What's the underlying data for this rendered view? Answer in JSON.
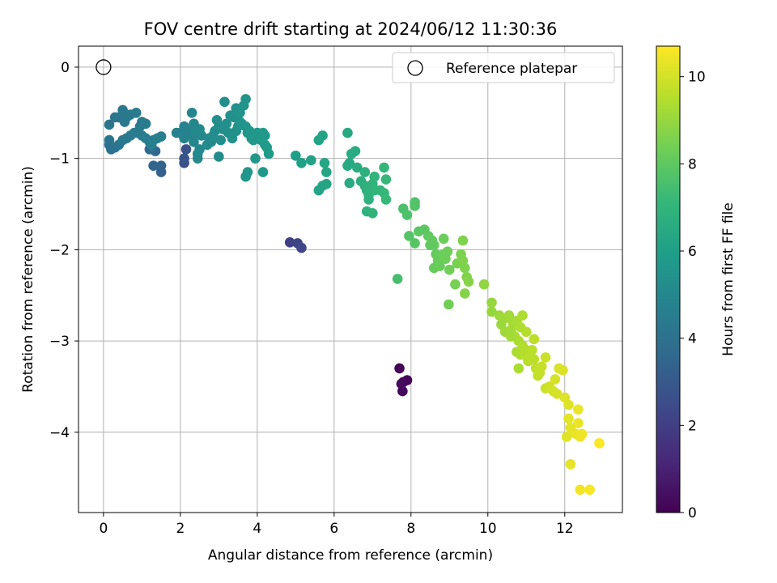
{
  "chart_data": {
    "type": "scatter",
    "title": "FOV centre drift starting at 2024/06/12 11:30:36",
    "xlabel": "Angular distance from reference (arcmin)",
    "ylabel": "Rotation from reference (arcmin)",
    "xlim": [
      -0.65,
      13.5
    ],
    "ylim": [
      -4.88,
      0.23
    ],
    "xticks": [
      0,
      2,
      4,
      6,
      8,
      10,
      12
    ],
    "yticks": [
      0,
      -1,
      -2,
      -3,
      -4
    ],
    "grid": true,
    "legend": {
      "placement": "top-right",
      "entries": [
        "Reference platepar"
      ]
    },
    "reference_point": {
      "x": 0,
      "y": 0
    },
    "colorbar": {
      "label": "Hours from first FF file",
      "range": [
        0,
        10.7
      ],
      "ticks": [
        0,
        2,
        4,
        6,
        8,
        10
      ],
      "colormap": [
        "#440154",
        "#482878",
        "#3e4989",
        "#31688e",
        "#26828e",
        "#1f9e89",
        "#35b779",
        "#6ece58",
        "#b5de2b",
        "#fde725"
      ]
    },
    "points": [
      [
        7.7,
        -3.3,
        0.1
      ],
      [
        7.8,
        -3.45,
        0.15
      ],
      [
        7.9,
        -3.43,
        0.2
      ],
      [
        7.78,
        -3.55,
        0.25
      ],
      [
        7.75,
        -3.47,
        0.3
      ],
      [
        4.85,
        -1.92,
        2.1
      ],
      [
        5.05,
        -1.93,
        2.2
      ],
      [
        5.15,
        -1.98,
        2.3
      ],
      [
        2.1,
        -1.05,
        2.6
      ],
      [
        2.15,
        -0.9,
        2.7
      ],
      [
        2.1,
        -1.0,
        2.8
      ],
      [
        1.5,
        -1.15,
        3.3
      ],
      [
        1.5,
        -1.08,
        3.4
      ],
      [
        1.3,
        -1.08,
        3.5
      ],
      [
        1.35,
        -0.92,
        3.6
      ],
      [
        1.2,
        -0.9,
        3.7
      ],
      [
        0.15,
        -0.85,
        3.9
      ],
      [
        0.2,
        -0.9,
        4.0
      ],
      [
        0.3,
        -0.88,
        4.05
      ],
      [
        0.15,
        -0.8,
        4.1
      ],
      [
        0.4,
        -0.85,
        4.2
      ],
      [
        0.5,
        -0.8,
        4.3
      ],
      [
        0.6,
        -0.78,
        4.35
      ],
      [
        0.7,
        -0.75,
        4.4
      ],
      [
        0.8,
        -0.72,
        4.45
      ],
      [
        0.9,
        -0.72,
        4.5
      ],
      [
        1.0,
        -0.75,
        4.5
      ],
      [
        1.1,
        -0.78,
        4.55
      ],
      [
        1.2,
        -0.82,
        4.6
      ],
      [
        1.3,
        -0.8,
        4.6
      ],
      [
        1.4,
        -0.78,
        4.6
      ],
      [
        1.25,
        -0.85,
        4.65
      ],
      [
        1.1,
        -0.62,
        4.55
      ],
      [
        1.0,
        -0.6,
        4.5
      ],
      [
        0.85,
        -0.5,
        4.45
      ],
      [
        0.7,
        -0.52,
        4.4
      ],
      [
        0.6,
        -0.55,
        4.35
      ],
      [
        0.5,
        -0.47,
        4.3
      ],
      [
        0.4,
        -0.55,
        4.25
      ],
      [
        0.3,
        -0.55,
        4.2
      ],
      [
        0.15,
        -0.63,
        4.15
      ],
      [
        0.55,
        -0.6,
        4.3
      ],
      [
        0.95,
        -0.65,
        4.45
      ],
      [
        1.05,
        -0.62,
        4.5
      ],
      [
        1.5,
        -0.76,
        4.6
      ],
      [
        2.1,
        -0.65,
        4.75
      ],
      [
        2.2,
        -0.7,
        4.8
      ],
      [
        2.3,
        -0.75,
        4.85
      ],
      [
        2.35,
        -0.82,
        4.9
      ],
      [
        2.45,
        -0.95,
        4.95
      ],
      [
        2.5,
        -0.9,
        5.0
      ],
      [
        2.55,
        -0.75,
        5.0
      ],
      [
        2.4,
        -0.7,
        5.0
      ],
      [
        2.35,
        -0.62,
        4.95
      ],
      [
        2.3,
        -0.5,
        4.9
      ],
      [
        2.5,
        -0.68,
        5.05
      ],
      [
        2.45,
        -1.0,
        5.0
      ],
      [
        2.0,
        -0.72,
        4.75
      ],
      [
        1.9,
        -0.72,
        4.7
      ],
      [
        2.1,
        -0.78,
        4.8
      ],
      [
        2.75,
        -0.78,
        5.1
      ],
      [
        2.8,
        -0.82,
        5.15
      ],
      [
        2.85,
        -0.75,
        5.2
      ],
      [
        2.9,
        -0.7,
        5.2
      ],
      [
        3.0,
        -0.65,
        5.25
      ],
      [
        3.05,
        -0.8,
        5.3
      ],
      [
        3.1,
        -0.68,
        5.3
      ],
      [
        2.95,
        -0.58,
        5.25
      ],
      [
        3.2,
        -0.62,
        5.3
      ],
      [
        3.25,
        -0.72,
        5.35
      ],
      [
        3.35,
        -0.78,
        5.4
      ],
      [
        3.45,
        -0.7,
        5.45
      ],
      [
        3.5,
        -0.65,
        5.45
      ],
      [
        3.55,
        -0.6,
        5.5
      ],
      [
        3.6,
        -0.62,
        5.5
      ],
      [
        3.7,
        -0.65,
        5.55
      ],
      [
        3.75,
        -0.72,
        5.55
      ],
      [
        3.8,
        -0.7,
        5.6
      ],
      [
        3.85,
        -0.78,
        5.6
      ],
      [
        3.9,
        -0.8,
        5.65
      ],
      [
        3.95,
        -0.75,
        5.65
      ],
      [
        4.0,
        -0.72,
        5.7
      ],
      [
        4.1,
        -0.8,
        5.7
      ],
      [
        4.15,
        -0.72,
        5.75
      ],
      [
        4.2,
        -0.75,
        5.75
      ],
      [
        4.25,
        -0.88,
        5.8
      ],
      [
        4.3,
        -0.95,
        5.8
      ],
      [
        4.2,
        -0.85,
        5.8
      ],
      [
        3.15,
        -0.38,
        5.3
      ],
      [
        3.45,
        -0.45,
        5.4
      ],
      [
        3.4,
        -0.55,
        5.4
      ],
      [
        3.65,
        -0.42,
        5.5
      ],
      [
        3.7,
        -0.35,
        5.55
      ],
      [
        3.55,
        -0.5,
        5.5
      ],
      [
        3.3,
        -0.53,
        5.35
      ],
      [
        3.7,
        -1.2,
        5.6
      ],
      [
        3.75,
        -1.15,
        5.6
      ],
      [
        3.95,
        -1.0,
        5.65
      ],
      [
        4.15,
        -1.15,
        5.75
      ],
      [
        3.0,
        -0.98,
        5.2
      ],
      [
        2.7,
        -0.85,
        5.1
      ],
      [
        5.4,
        -1.02,
        6.1
      ],
      [
        5.6,
        -0.8,
        6.2
      ],
      [
        5.7,
        -0.75,
        6.25
      ],
      [
        5.75,
        -1.05,
        6.3
      ],
      [
        5.8,
        -1.15,
        6.3
      ],
      [
        5.6,
        -1.35,
        6.2
      ],
      [
        5.7,
        -1.3,
        6.25
      ],
      [
        5.8,
        -1.28,
        6.3
      ],
      [
        5.0,
        -0.97,
        6.0
      ],
      [
        5.15,
        -1.05,
        6.05
      ],
      [
        6.35,
        -0.72,
        6.4
      ],
      [
        6.45,
        -0.95,
        6.5
      ],
      [
        6.55,
        -0.92,
        6.55
      ],
      [
        6.4,
        -1.05,
        6.45
      ],
      [
        6.35,
        -1.08,
        6.45
      ],
      [
        6.6,
        -1.1,
        6.6
      ],
      [
        6.4,
        -1.27,
        6.5
      ],
      [
        6.7,
        -1.25,
        6.7
      ],
      [
        6.8,
        -1.3,
        6.75
      ],
      [
        6.85,
        -1.35,
        6.8
      ],
      [
        6.9,
        -1.4,
        6.85
      ],
      [
        6.95,
        -1.32,
        6.9
      ],
      [
        7.0,
        -1.28,
        6.9
      ],
      [
        7.05,
        -1.35,
        6.95
      ],
      [
        6.9,
        -1.45,
        6.85
      ],
      [
        6.85,
        -1.58,
        6.85
      ],
      [
        7.0,
        -1.6,
        6.95
      ],
      [
        6.8,
        -1.15,
        6.75
      ],
      [
        7.3,
        -1.1,
        7.1
      ],
      [
        7.35,
        -1.23,
        7.15
      ],
      [
        7.2,
        -1.35,
        7.05
      ],
      [
        7.3,
        -1.38,
        7.15
      ],
      [
        7.35,
        -1.45,
        7.2
      ],
      [
        7.05,
        -1.2,
        6.95
      ],
      [
        7.65,
        -2.32,
        7.5
      ],
      [
        7.8,
        -1.55,
        7.6
      ],
      [
        7.9,
        -1.62,
        7.65
      ],
      [
        8.1,
        -1.48,
        7.7
      ],
      [
        8.1,
        -1.52,
        7.75
      ],
      [
        7.95,
        -1.85,
        7.8
      ],
      [
        8.1,
        -1.93,
        7.85
      ],
      [
        8.2,
        -1.8,
        7.9
      ],
      [
        8.35,
        -1.78,
        7.95
      ],
      [
        8.45,
        -1.85,
        8.0
      ],
      [
        8.55,
        -1.9,
        8.05
      ],
      [
        8.6,
        -1.95,
        8.1
      ],
      [
        8.5,
        -1.95,
        8.05
      ],
      [
        8.65,
        -2.05,
        8.15
      ],
      [
        8.7,
        -2.12,
        8.2
      ],
      [
        8.75,
        -2.08,
        8.2
      ],
      [
        8.85,
        -2.05,
        8.25
      ],
      [
        8.9,
        -2.1,
        8.3
      ],
      [
        8.95,
        -2.02,
        8.3
      ],
      [
        8.85,
        -1.88,
        8.25
      ],
      [
        8.6,
        -2.2,
        8.15
      ],
      [
        8.75,
        -2.18,
        8.2
      ],
      [
        9.0,
        -2.22,
        8.35
      ],
      [
        8.98,
        -2.6,
        8.35
      ],
      [
        9.15,
        -2.38,
        8.45
      ],
      [
        9.2,
        -2.15,
        8.5
      ],
      [
        9.3,
        -2.05,
        8.55
      ],
      [
        9.35,
        -2.12,
        8.6
      ],
      [
        9.4,
        -2.2,
        8.6
      ],
      [
        9.45,
        -2.3,
        8.65
      ],
      [
        9.5,
        -2.35,
        8.7
      ],
      [
        9.35,
        -1.9,
        8.6
      ],
      [
        9.4,
        -2.48,
        8.7
      ],
      [
        9.9,
        -2.38,
        8.9
      ],
      [
        10.1,
        -2.58,
        9.0
      ],
      [
        10.1,
        -2.68,
        9.0
      ],
      [
        10.3,
        -2.72,
        9.1
      ],
      [
        10.45,
        -2.75,
        9.15
      ],
      [
        10.55,
        -2.72,
        9.2
      ],
      [
        10.35,
        -2.82,
        9.1
      ],
      [
        10.45,
        -2.9,
        9.15
      ],
      [
        10.6,
        -2.88,
        9.2
      ],
      [
        10.65,
        -2.8,
        9.25
      ],
      [
        10.75,
        -2.78,
        9.3
      ],
      [
        10.7,
        -2.95,
        9.3
      ],
      [
        10.8,
        -3.0,
        9.35
      ],
      [
        10.75,
        -3.12,
        9.35
      ],
      [
        10.85,
        -3.15,
        9.4
      ],
      [
        10.9,
        -3.05,
        9.45
      ],
      [
        10.95,
        -3.15,
        9.5
      ],
      [
        11.0,
        -3.1,
        9.5
      ],
      [
        11.05,
        -3.22,
        9.55
      ],
      [
        11.1,
        -3.18,
        9.6
      ],
      [
        11.15,
        -3.1,
        9.6
      ],
      [
        11.2,
        -3.2,
        9.65
      ],
      [
        11.25,
        -3.3,
        9.7
      ],
      [
        11.3,
        -3.38,
        9.75
      ],
      [
        11.35,
        -3.35,
        9.75
      ],
      [
        11.4,
        -3.28,
        9.8
      ],
      [
        11.0,
        -2.9,
        9.5
      ],
      [
        11.2,
        -2.98,
        9.65
      ],
      [
        10.8,
        -3.3,
        9.35
      ],
      [
        10.9,
        -2.72,
        9.4
      ],
      [
        10.6,
        -2.95,
        9.2
      ],
      [
        10.85,
        -2.85,
        9.4
      ],
      [
        11.5,
        -3.52,
        9.9
      ],
      [
        11.6,
        -3.5,
        9.95
      ],
      [
        11.7,
        -3.55,
        10.0
      ],
      [
        11.75,
        -3.42,
        10.05
      ],
      [
        11.8,
        -3.58,
        10.05
      ],
      [
        11.85,
        -3.3,
        10.1
      ],
      [
        11.95,
        -3.32,
        10.1
      ],
      [
        11.5,
        -3.18,
        9.85
      ],
      [
        12.0,
        -3.62,
        10.15
      ],
      [
        12.1,
        -3.7,
        10.2
      ],
      [
        12.1,
        -3.85,
        10.25
      ],
      [
        12.15,
        -3.95,
        10.3
      ],
      [
        12.2,
        -4.0,
        10.3
      ],
      [
        12.3,
        -4.02,
        10.35
      ],
      [
        12.35,
        -3.9,
        10.4
      ],
      [
        12.4,
        -4.05,
        10.45
      ],
      [
        12.45,
        -4.02,
        10.45
      ],
      [
        12.35,
        -3.75,
        10.4
      ],
      [
        12.05,
        -4.05,
        10.2
      ],
      [
        12.15,
        -4.35,
        10.3
      ],
      [
        12.9,
        -4.12,
        10.65
      ],
      [
        12.4,
        -4.63,
        10.5
      ],
      [
        12.65,
        -4.63,
        10.6
      ]
    ]
  }
}
